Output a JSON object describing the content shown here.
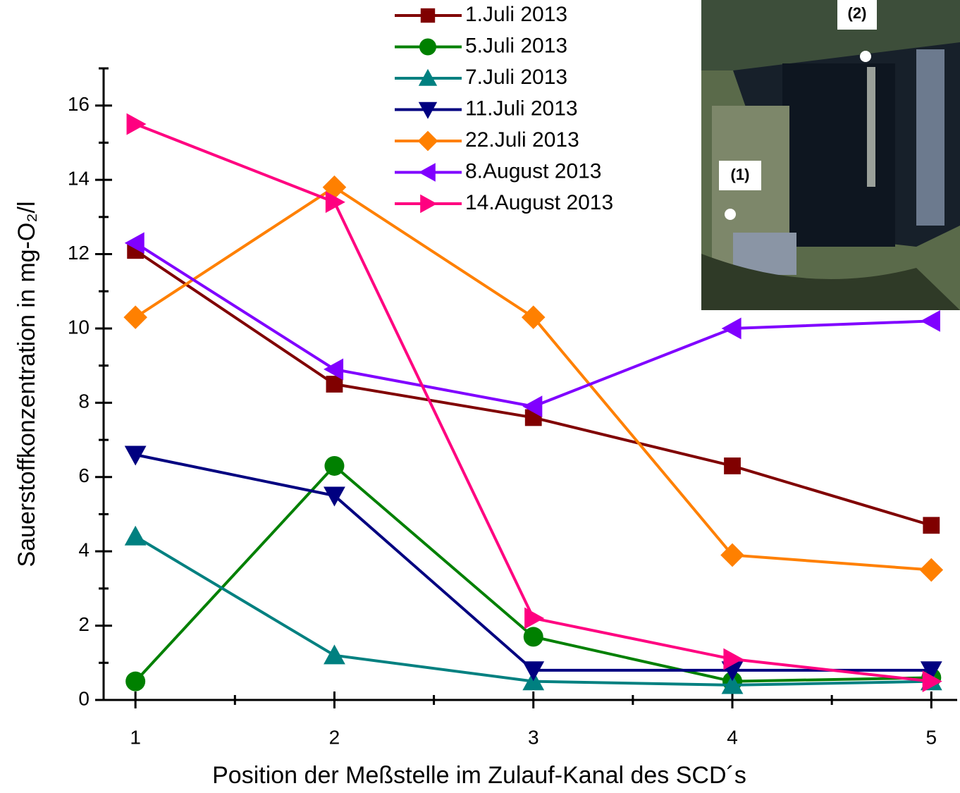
{
  "chart_data": {
    "type": "line",
    "x_label": "Position der Meßstelle im Zulauf-Kanal des SCD´s",
    "y_label": "Sauerstoffkonzentration in mg-O₂/l",
    "x": [
      1,
      2,
      3,
      4,
      5
    ],
    "xlim": [
      0.84,
      5.13
    ],
    "xticks": [
      1,
      2,
      3,
      4,
      5
    ],
    "xminorticks": [
      1.5,
      2.5,
      3.5,
      4.5
    ],
    "ylim": [
      0,
      17
    ],
    "yticks": [
      0,
      2,
      4,
      6,
      8,
      10,
      12,
      14,
      16
    ],
    "yminorticks": [
      1,
      3,
      5,
      7,
      9,
      11,
      13,
      15,
      17
    ],
    "series": [
      {
        "name": "1.Juli 2013",
        "color": "#800000",
        "marker": "square",
        "values": [
          12.1,
          8.5,
          7.6,
          6.3,
          4.7
        ]
      },
      {
        "name": "5.Juli 2013",
        "color": "#008000",
        "marker": "circle",
        "values": [
          0.5,
          6.3,
          1.7,
          0.5,
          0.6
        ]
      },
      {
        "name": "7.Juli 2013",
        "color": "#008080",
        "marker": "triangle-up",
        "values": [
          4.4,
          1.2,
          0.5,
          0.4,
          0.5
        ]
      },
      {
        "name": "11.Juli 2013",
        "color": "#000080",
        "marker": "triangle-down",
        "values": [
          6.6,
          5.5,
          0.8,
          0.8,
          0.8
        ]
      },
      {
        "name": "22.Juli 2013",
        "color": "#ff8000",
        "marker": "diamond",
        "values": [
          10.3,
          13.8,
          10.3,
          3.9,
          3.5
        ]
      },
      {
        "name": "8.August 2013",
        "color": "#8000ff",
        "marker": "triangle-left",
        "values": [
          12.3,
          8.9,
          7.9,
          10.0,
          10.2
        ]
      },
      {
        "name": "14.August 2013",
        "color": "#ff0080",
        "marker": "triangle-right",
        "values": [
          15.5,
          13.4,
          2.2,
          1.1,
          0.5
        ]
      }
    ],
    "inset_labels": [
      "(1)",
      "(2)"
    ]
  }
}
